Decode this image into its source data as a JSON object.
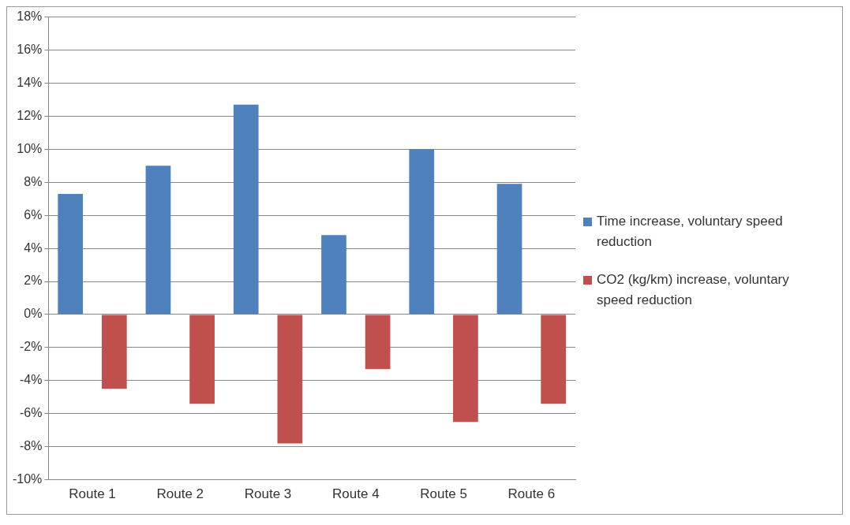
{
  "chart_data": {
    "type": "bar",
    "categories": [
      "Route 1",
      "Route 2",
      "Route 3",
      "Route 4",
      "Route 5",
      "Route 6"
    ],
    "series": [
      {
        "name": "Time increase,  voluntary speed reduction",
        "color": "#4f81bd",
        "values": [
          7.3,
          9.0,
          12.7,
          4.8,
          10.0,
          7.9
        ]
      },
      {
        "name": "CO2 (kg/km) increase, voluntary speed reduction",
        "color": "#c0504d",
        "values": [
          -4.5,
          -5.4,
          -7.8,
          -3.3,
          -6.5,
          -5.4
        ]
      }
    ],
    "ylim": [
      -10,
      18
    ],
    "yticks": [
      {
        "value": -10,
        "label": "-10%"
      },
      {
        "value": -8,
        "label": "-8%"
      },
      {
        "value": -6,
        "label": "-6%"
      },
      {
        "value": -4,
        "label": "-4%"
      },
      {
        "value": -2,
        "label": "-2%"
      },
      {
        "value": 0,
        "label": "0%"
      },
      {
        "value": 2,
        "label": "2%"
      },
      {
        "value": 4,
        "label": "4%"
      },
      {
        "value": 6,
        "label": "6%"
      },
      {
        "value": 8,
        "label": "8%"
      },
      {
        "value": 10,
        "label": "10%"
      },
      {
        "value": 12,
        "label": "12%"
      },
      {
        "value": 14,
        "label": "14%"
      },
      {
        "value": 16,
        "label": "16%"
      },
      {
        "value": 18,
        "label": "18%"
      }
    ],
    "grid": "y",
    "legend": "right"
  }
}
